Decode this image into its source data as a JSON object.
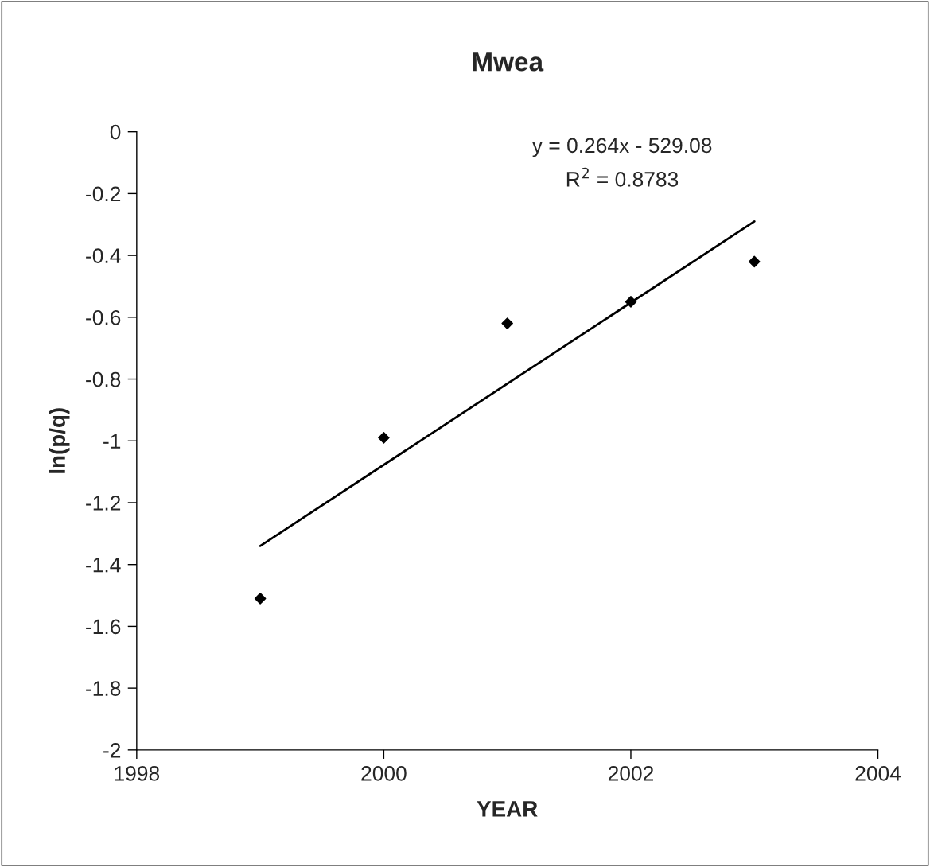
{
  "chart_data": {
    "type": "scatter",
    "title": "Mwea",
    "xlabel": "YEAR",
    "ylabel": "ln(p/q)",
    "x": [
      1999,
      2000,
      2001,
      2002,
      2003
    ],
    "series": [
      {
        "color": "#000000",
        "marker": "diamond",
        "values": [
          -1.51,
          -0.99,
          -0.62,
          -0.55,
          -0.42
        ]
      },
      {
        "type": "line",
        "color": "#000000",
        "marker": "none",
        "line_style": "solid",
        "x": [
          1999,
          2003
        ],
        "values": [
          -1.34,
          -0.29
        ]
      }
    ],
    "xlim": [
      1998,
      2004
    ],
    "xticks": [
      1998,
      2000,
      2002,
      2004
    ],
    "ylim": [
      -2,
      0
    ],
    "yticks": [
      0,
      -0.2,
      -0.4,
      -0.6,
      -0.8,
      -1,
      -1.2,
      -1.4,
      -1.6,
      -1.8,
      -2
    ],
    "grid": false,
    "legend": false,
    "annotations": [
      "y = 0.264x - 529.08",
      "R$^{2}$ = 0.8783"
    ]
  }
}
